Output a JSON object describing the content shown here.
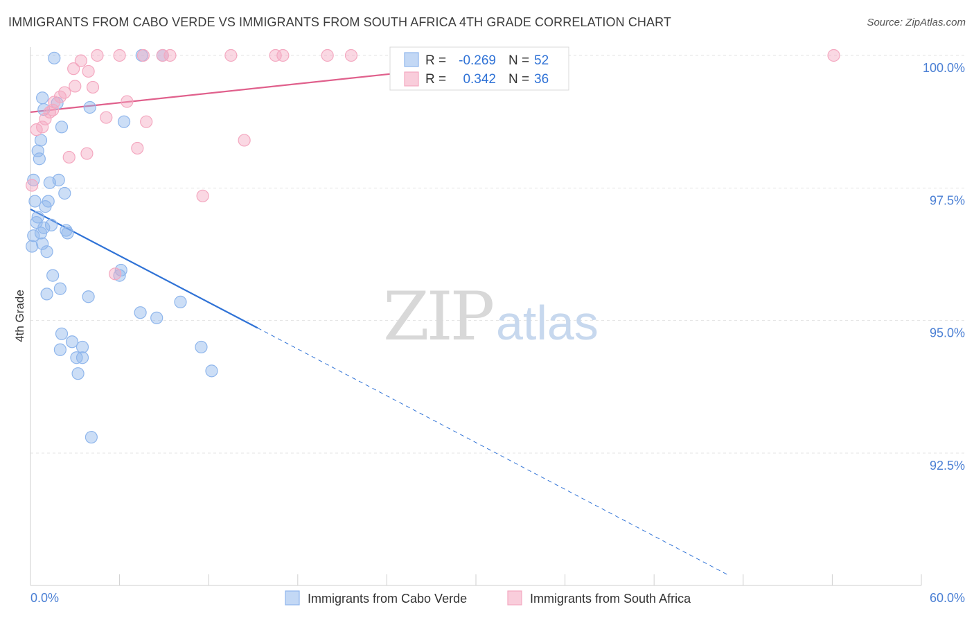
{
  "header": {
    "title": "IMMIGRANTS FROM CABO VERDE VS IMMIGRANTS FROM SOUTH AFRICA 4TH GRADE CORRELATION CHART",
    "source": "Source: ZipAtlas.com"
  },
  "watermark": {
    "zip": "ZIP",
    "atlas": "atlas"
  },
  "chart_data": {
    "type": "scatter",
    "title": "IMMIGRANTS FROM CABO VERDE VS IMMIGRANTS FROM SOUTH AFRICA 4TH GRADE CORRELATION CHART",
    "xlabel": "",
    "ylabel": "4th Grade",
    "xlim": [
      0,
      60
    ],
    "ylim": [
      90.2,
      100.2
    ],
    "x_tick_labels": [
      "0.0%",
      "60.0%"
    ],
    "y_ticks": [
      100.0,
      97.5,
      95.0,
      92.5
    ],
    "y_tick_labels": [
      "100.0%",
      "97.5%",
      "95.0%",
      "92.5%"
    ],
    "grid": true,
    "legend_stats": [
      {
        "r_label": "R =",
        "r_value": "-0.269",
        "n_label": "N =",
        "n_value": "52"
      },
      {
        "r_label": "R =",
        "r_value": "0.342",
        "n_label": "N =",
        "n_value": "36"
      }
    ],
    "series": [
      {
        "name": "Immigrants from Cabo Verde",
        "color": "#8fb6ec",
        "line_color": "#2f72d6",
        "trend": {
          "x_solid": [
            0.0,
            15.3
          ],
          "y_solid": [
            97.1,
            94.86
          ],
          "x_dashed": [
            15.3,
            47.0
          ],
          "y_dashed": [
            94.86,
            90.2
          ]
        },
        "points": [
          [
            1.6,
            99.95
          ],
          [
            7.5,
            100.0
          ],
          [
            8.9,
            100.0
          ],
          [
            0.8,
            99.2
          ],
          [
            0.9,
            98.98
          ],
          [
            1.8,
            99.1
          ],
          [
            4.0,
            99.02
          ],
          [
            6.3,
            98.75
          ],
          [
            2.1,
            98.65
          ],
          [
            0.7,
            98.4
          ],
          [
            0.5,
            98.2
          ],
          [
            0.6,
            98.05
          ],
          [
            0.2,
            97.65
          ],
          [
            1.9,
            97.65
          ],
          [
            1.3,
            97.6
          ],
          [
            2.3,
            97.4
          ],
          [
            0.3,
            97.25
          ],
          [
            1.2,
            97.25
          ],
          [
            1.0,
            97.15
          ],
          [
            0.5,
            96.95
          ],
          [
            0.4,
            96.85
          ],
          [
            1.4,
            96.8
          ],
          [
            0.9,
            96.75
          ],
          [
            2.4,
            96.7
          ],
          [
            2.5,
            96.65
          ],
          [
            0.7,
            96.65
          ],
          [
            0.2,
            96.6
          ],
          [
            0.8,
            96.45
          ],
          [
            0.1,
            96.4
          ],
          [
            1.1,
            96.3
          ],
          [
            6.1,
            95.95
          ],
          [
            6.0,
            95.85
          ],
          [
            1.5,
            95.85
          ],
          [
            2.0,
            95.6
          ],
          [
            1.1,
            95.5
          ],
          [
            3.9,
            95.45
          ],
          [
            10.1,
            95.35
          ],
          [
            7.4,
            95.15
          ],
          [
            8.5,
            95.05
          ],
          [
            2.1,
            94.75
          ],
          [
            2.8,
            94.6
          ],
          [
            3.5,
            94.5
          ],
          [
            11.5,
            94.5
          ],
          [
            2.0,
            94.45
          ],
          [
            3.1,
            94.3
          ],
          [
            3.5,
            94.3
          ],
          [
            3.2,
            94.0
          ],
          [
            12.2,
            94.05
          ],
          [
            4.1,
            92.8
          ]
        ]
      },
      {
        "name": "Immigrants from South Africa",
        "color": "#f4a8c0",
        "line_color": "#e0608c",
        "trend": {
          "x_solid": [
            0.0,
            36.0
          ],
          "y_solid": [
            98.93,
            100.0
          ]
        },
        "points": [
          [
            4.5,
            100.0
          ],
          [
            6.0,
            100.0
          ],
          [
            7.6,
            100.0
          ],
          [
            8.9,
            100.0
          ],
          [
            9.4,
            100.0
          ],
          [
            13.5,
            100.0
          ],
          [
            16.5,
            100.0
          ],
          [
            17.0,
            100.0
          ],
          [
            20.0,
            100.0
          ],
          [
            21.6,
            100.0
          ],
          [
            33.9,
            100.0
          ],
          [
            54.1,
            100.0
          ],
          [
            3.4,
            99.9
          ],
          [
            2.9,
            99.75
          ],
          [
            3.9,
            99.7
          ],
          [
            3.0,
            99.42
          ],
          [
            4.2,
            99.4
          ],
          [
            2.3,
            99.3
          ],
          [
            2.0,
            99.22
          ],
          [
            1.6,
            99.12
          ],
          [
            6.5,
            99.13
          ],
          [
            1.5,
            98.97
          ],
          [
            1.3,
            98.93
          ],
          [
            1.0,
            98.8
          ],
          [
            5.1,
            98.83
          ],
          [
            7.8,
            98.75
          ],
          [
            0.8,
            98.65
          ],
          [
            0.4,
            98.6
          ],
          [
            14.4,
            98.4
          ],
          [
            7.2,
            98.25
          ],
          [
            3.8,
            98.15
          ],
          [
            2.6,
            98.08
          ],
          [
            0.1,
            97.55
          ],
          [
            11.6,
            97.35
          ],
          [
            5.7,
            95.88
          ]
        ]
      }
    ]
  },
  "bottom_legend": [
    "Immigrants from Cabo Verde",
    "Immigrants from South Africa"
  ]
}
